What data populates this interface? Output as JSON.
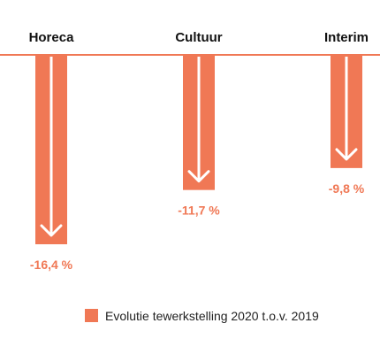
{
  "chart_data": {
    "type": "bar",
    "orientation": "vertical-negative",
    "categories": [
      "Horeca",
      "Cultuur",
      "Interim"
    ],
    "values": [
      -16.4,
      -11.7,
      -9.8
    ],
    "value_labels": [
      "-16,4 %",
      "-11,7 %",
      "-9,8 %"
    ],
    "series": [
      {
        "name": "Evolutie tewerkstelling 2020 t.o.v. 2019",
        "values": [
          -16.4,
          -11.7,
          -9.8
        ]
      }
    ],
    "title": "",
    "xlabel": "",
    "ylabel": "",
    "ylim": [
      -17,
      0
    ],
    "grid": false,
    "legend_position": "bottom-center",
    "colors": {
      "bar": "#F07855",
      "arrow": "#ffffff",
      "baseline": "#F07855",
      "value_label": "#F07855",
      "category_label": "#111111"
    }
  }
}
